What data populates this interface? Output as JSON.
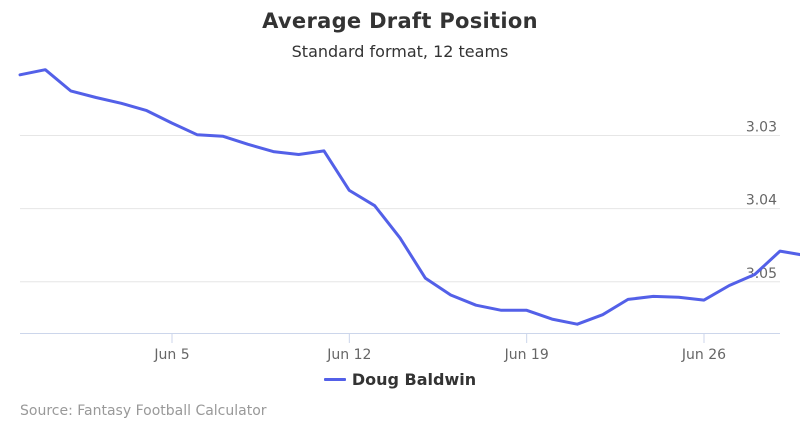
{
  "chart_data": {
    "type": "line",
    "title": "Average Draft Position",
    "subtitle": "Standard format, 12 teams",
    "xlabel": "",
    "ylabel": "",
    "x_ticks": [
      "Jun 5",
      "Jun 12",
      "Jun 19",
      "Jun 26"
    ],
    "y_ticks": [
      "3.03",
      "3.04",
      "3.05"
    ],
    "y_reversed": true,
    "ylim": [
      3.022,
      3.057
    ],
    "xlim": [
      "May 30",
      "Jun 29"
    ],
    "grid": true,
    "legend_position": "bottom",
    "series": [
      {
        "name": "Doug Baldwin",
        "color": "#5360e8",
        "x": [
          "May 30",
          "May 31",
          "Jun 1",
          "Jun 2",
          "Jun 3",
          "Jun 4",
          "Jun 5",
          "Jun 6",
          "Jun 7",
          "Jun 8",
          "Jun 9",
          "Jun 10",
          "Jun 11",
          "Jun 12",
          "Jun 13",
          "Jun 14",
          "Jun 15",
          "Jun 16",
          "Jun 17",
          "Jun 18",
          "Jun 19",
          "Jun 20",
          "Jun 21",
          "Jun 22",
          "Jun 23",
          "Jun 24",
          "Jun 25",
          "Jun 26",
          "Jun 27",
          "Jun 28",
          "Jun 29",
          "Jun 30"
        ],
        "values": [
          3.0217,
          3.021,
          3.0239,
          3.0248,
          3.0256,
          3.0266,
          3.0283,
          3.0299,
          3.0301,
          3.0312,
          3.0322,
          3.0326,
          3.0321,
          3.0375,
          3.0396,
          3.044,
          3.0495,
          3.0518,
          3.0532,
          3.0539,
          3.0539,
          3.0551,
          3.0558,
          3.0545,
          3.0524,
          3.052,
          3.0521,
          3.0525,
          3.0505,
          3.049,
          3.0458,
          3.0464
        ]
      }
    ]
  },
  "legend": {
    "label": "Doug Baldwin"
  },
  "credits": {
    "text": "Source: Fantasy Football Calculator"
  }
}
